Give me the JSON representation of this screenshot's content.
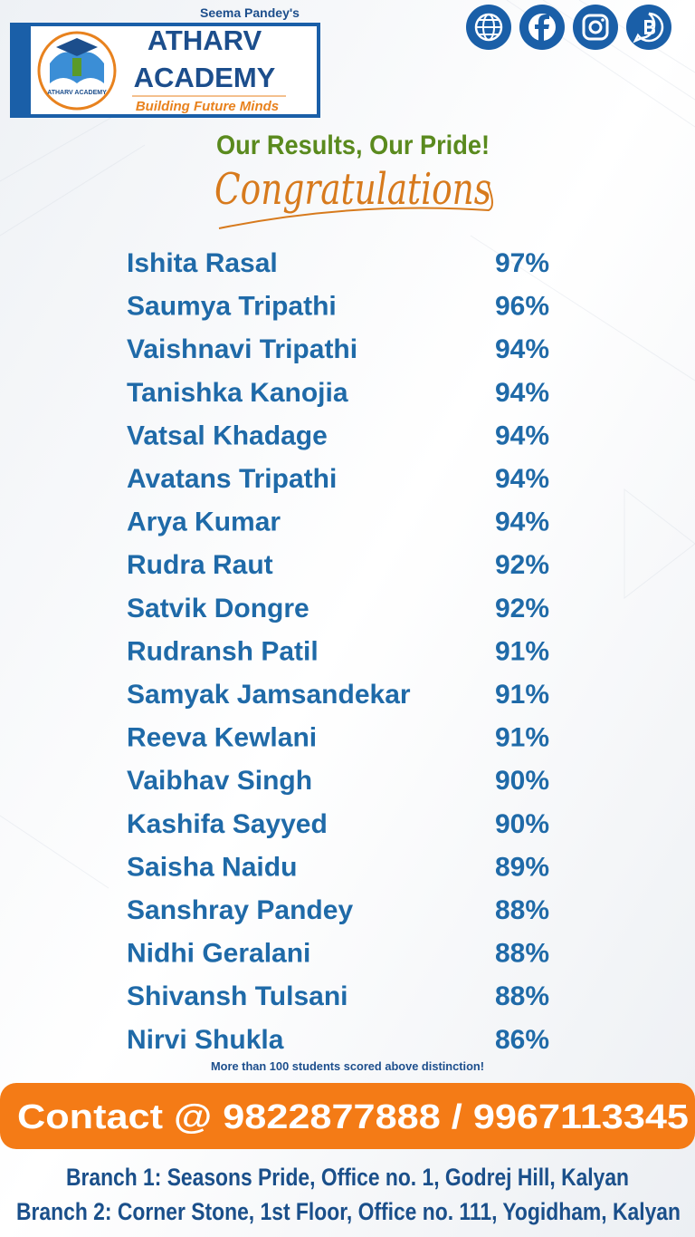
{
  "header": {
    "owner": "Seema Pandey's",
    "name_line1": "ATHARV",
    "name_line2": "ACADEMY",
    "tagline": "Building Future Minds",
    "logo_caption": "ATHARV ACADEMY"
  },
  "headline": "Our Results, Our Pride!",
  "subheadline": "Congratulations",
  "results": [
    {
      "name": "Ishita Rasal",
      "score": "97%"
    },
    {
      "name": "Saumya Tripathi",
      "score": "96%"
    },
    {
      "name": "Vaishnavi Tripathi",
      "score": "94%"
    },
    {
      "name": "Tanishka Kanojia",
      "score": "94%"
    },
    {
      "name": "Vatsal Khadage",
      "score": "94%"
    },
    {
      "name": "Avatans Tripathi",
      "score": "94%"
    },
    {
      "name": "Arya Kumar",
      "score": "94%"
    },
    {
      "name": "Rudra Raut",
      "score": "92%"
    },
    {
      "name": "Satvik Dongre",
      "score": "92%"
    },
    {
      "name": "Rudransh Patil",
      "score": "91%"
    },
    {
      "name": "Samyak Jamsandekar",
      "score": "91%"
    },
    {
      "name": "Reeva Kewlani",
      "score": "91%"
    },
    {
      "name": "Vaibhav Singh",
      "score": "90%"
    },
    {
      "name": "Kashifa Sayyed",
      "score": "90%"
    },
    {
      "name": "Saisha Naidu",
      "score": "89%"
    },
    {
      "name": "Sanshray Pandey",
      "score": "88%"
    },
    {
      "name": "Nidhi Geralani",
      "score": "88%"
    },
    {
      "name": "Shivansh Tulsani",
      "score": "88%"
    },
    {
      "name": "Nirvi Shukla",
      "score": "86%"
    }
  ],
  "note": "More than 100 students scored above distinction!",
  "contact": "Contact @ 9822877888 / 9967113345",
  "branches": [
    "Branch 1: Seasons Pride, Office no. 1, Godrej Hill, Kalyan",
    "Branch 2: Corner Stone, 1st Floor, Office no. 111, Yogidham, Kalyan"
  ]
}
